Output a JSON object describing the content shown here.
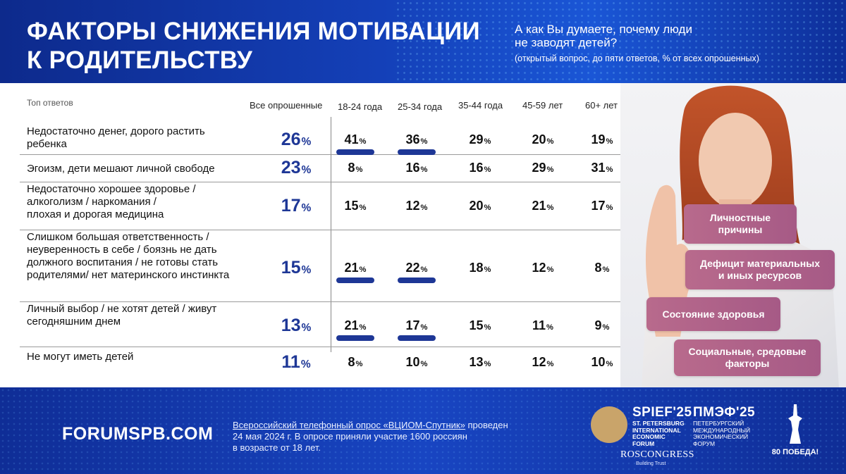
{
  "header": {
    "title_line1": "ФАКТОРЫ СНИЖЕНИЯ МОТИВАЦИИ",
    "title_line2": "К РОДИТЕЛЬСТВУ",
    "question_line1": "А как Вы думаете, почему люди",
    "question_line2": "не заводят детей?",
    "question_note": "(открытый вопрос, до пяти ответов, % от всех опрошенных)"
  },
  "chart_data": {
    "type": "table",
    "title": "ФАКТОРЫ СНИЖЕНИЯ МОТИВАЦИИ К РОДИТЕЛЬСТВУ",
    "row_header": "Топ ответов",
    "columns": [
      "Все опрошенные",
      "18-24 года",
      "25-34 года",
      "35-44 года",
      "45-59 лет",
      "60+ лет"
    ],
    "unit": "%",
    "rows": [
      {
        "label_lines": [
          "Недостаточно денег, дорого растить",
          "ребенка"
        ],
        "values": [
          26,
          41,
          36,
          29,
          20,
          19
        ],
        "highlighted": [
          false,
          true,
          true,
          false,
          false,
          false
        ]
      },
      {
        "label_lines": [
          "Эгоизм, дети мешают личной свободе"
        ],
        "values": [
          23,
          8,
          16,
          16,
          29,
          31
        ],
        "highlighted": [
          false,
          false,
          false,
          false,
          false,
          false
        ]
      },
      {
        "label_lines": [
          "Недостаточно хорошее здоровье /",
          "алкоголизм / наркомания /",
          "плохая и дорогая медицина"
        ],
        "values": [
          17,
          15,
          12,
          20,
          21,
          17
        ],
        "highlighted": [
          false,
          false,
          false,
          false,
          false,
          false
        ]
      },
      {
        "label_lines": [
          "Слишком большая ответственность /",
          "неуверенность в себе / боязнь не дать",
          "должного воспитания / не готовы стать",
          "родителями/ нет материнского инстинкта"
        ],
        "values": [
          15,
          21,
          22,
          18,
          12,
          8
        ],
        "highlighted": [
          false,
          true,
          true,
          false,
          false,
          false
        ]
      },
      {
        "label_lines": [
          "Личный выбор / не хотят детей / живут",
          "сегодняшним днем"
        ],
        "values": [
          13,
          21,
          17,
          15,
          11,
          9
        ],
        "highlighted": [
          false,
          true,
          true,
          false,
          false,
          false
        ]
      },
      {
        "label_lines": [
          "Не могут иметь детей"
        ],
        "values": [
          11,
          8,
          10,
          13,
          12,
          10
        ],
        "highlighted": [
          false,
          false,
          false,
          false,
          false,
          false
        ]
      }
    ],
    "categories_tags": [
      "Личностные причины",
      "Дефицит материальных и иных ресурсов",
      "Состояние здоровья",
      "Социальные, средовые факторы"
    ]
  },
  "tags": {
    "t1_line1": "Личностные",
    "t1_line2": "причины",
    "t2_line1": "Дефицит материальных",
    "t2_line2": "и иных ресурсов",
    "t3_line1": "Состояние здоровья",
    "t4_line1": "Социальные, средовые",
    "t4_line2": "факторы"
  },
  "footer": {
    "site": "FORUMSPB.COM",
    "source_link": "Всероссийский телефонный опрос «ВЦИОМ-Спутник»",
    "source_rest1": " проведен",
    "source_line2": "24 мая 2024 г. В опросе приняли участие 1600 россиян",
    "source_line3": "в возрасте от 18 лет.",
    "spief": "SPIEF'25",
    "spief_sub1": "ST. PETERSBURG",
    "spief_sub2": "INTERNATIONAL",
    "spief_sub3": "ECONOMIC",
    "spief_sub4": "FORUM",
    "pmef": "ПМЭФ'25",
    "pmef_sub1": "ПЕТЕРБУРГСКИЙ",
    "pmef_sub2": "МЕЖДУНАРОДНЫЙ",
    "pmef_sub3": "ЭКОНОМИЧЕСКИЙ",
    "pmef_sub4": "ФОРУМ",
    "roscongress": "ROSCONGRESS",
    "roscongress_sub": "Building Trust",
    "pobeda": "80 ПОБЕДА!"
  },
  "colors": {
    "accent": "#1e3796",
    "header_bg": "#1440b8",
    "tag_bg": "#b06287"
  }
}
